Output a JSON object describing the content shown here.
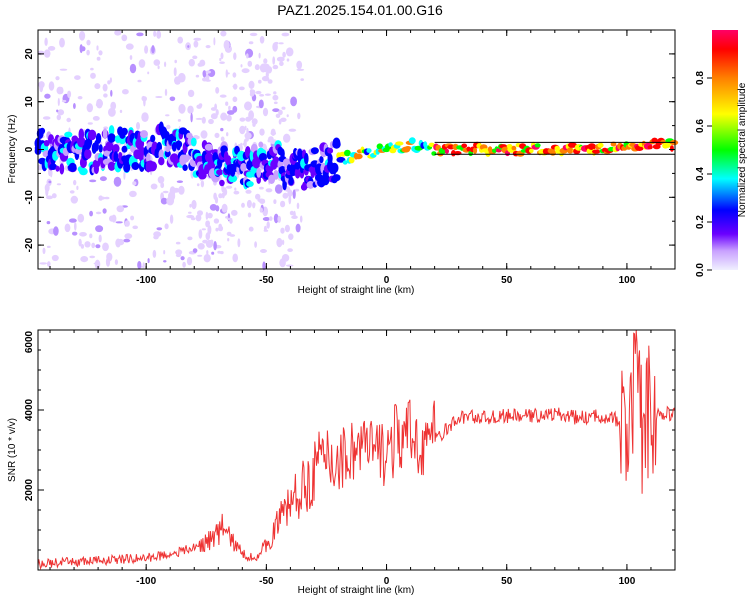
{
  "title": "PAZ1.2025.154.01.00.G16",
  "colors": {
    "line": "#ee3333",
    "colormap": [
      "#f0f0ff",
      "#c8a0ff",
      "#6a00ff",
      "#0000ff",
      "#00ffff",
      "#00ff00",
      "#ffff00",
      "#ff8000",
      "#ff0000",
      "#ff0066"
    ]
  },
  "chart_data": [
    {
      "type": "heatmap",
      "xlabel": "Height of straight line (km)",
      "ylabel": "Frequency (Hz)",
      "xlim": [
        -145,
        120
      ],
      "ylim": [
        -25,
        25
      ],
      "xticks": [
        -100,
        -50,
        0,
        50,
        100
      ],
      "yticks": [
        -20,
        -10,
        0,
        10,
        20
      ],
      "ridge_x": [
        -145,
        -130,
        -115,
        -100,
        -90,
        -80,
        -70,
        -60,
        -50,
        -40,
        -30,
        -20,
        -10,
        0,
        10,
        20,
        30,
        40,
        50,
        60,
        70,
        80,
        90,
        100,
        110,
        120
      ],
      "ridge_freq": [
        0,
        -1,
        0,
        0,
        1,
        -1,
        -3,
        -4,
        -2,
        -4,
        -4,
        -2,
        -1,
        0,
        1,
        0,
        0,
        0,
        0,
        0,
        0,
        0,
        0,
        1,
        1,
        1
      ],
      "colorbar": {
        "label": "Normalized spectral amplitude",
        "range": [
          0,
          1
        ],
        "ticks": [
          "0.0",
          "0.2",
          "0.4",
          "0.6",
          "0.8"
        ]
      }
    },
    {
      "type": "line",
      "xlabel": "Height of straight line (km)",
      "ylabel": "SNR (10 * v/v)",
      "xlim": [
        -145,
        120
      ],
      "ylim": [
        0,
        6000
      ],
      "xticks": [
        -100,
        -50,
        0,
        50,
        100
      ],
      "yticks": [
        2000,
        4000,
        6000
      ],
      "series": [
        {
          "x": [
            -145,
            -130,
            -115,
            -100,
            -90,
            -80,
            -75,
            -70,
            -68,
            -65,
            -60,
            -55,
            -50,
            -45,
            -40,
            -35,
            -30,
            -25,
            -20,
            -15,
            -10,
            -5,
            0,
            5,
            10,
            15,
            20,
            25,
            30,
            35,
            40,
            50,
            60,
            70,
            80,
            90,
            95,
            100,
            103,
            105,
            107,
            110,
            115,
            120
          ],
          "y": [
            150,
            200,
            250,
            300,
            400,
            550,
            700,
            900,
            1100,
            800,
            400,
            300,
            600,
            1200,
            1700,
            2000,
            2500,
            2800,
            2700,
            3000,
            3100,
            2900,
            3000,
            3300,
            3300,
            3200,
            3300,
            3500,
            3800,
            3850,
            3800,
            3850,
            3850,
            3900,
            3800,
            3850,
            3800,
            3200,
            4500,
            5200,
            2500,
            3800,
            3900,
            3900
          ]
        }
      ]
    }
  ]
}
